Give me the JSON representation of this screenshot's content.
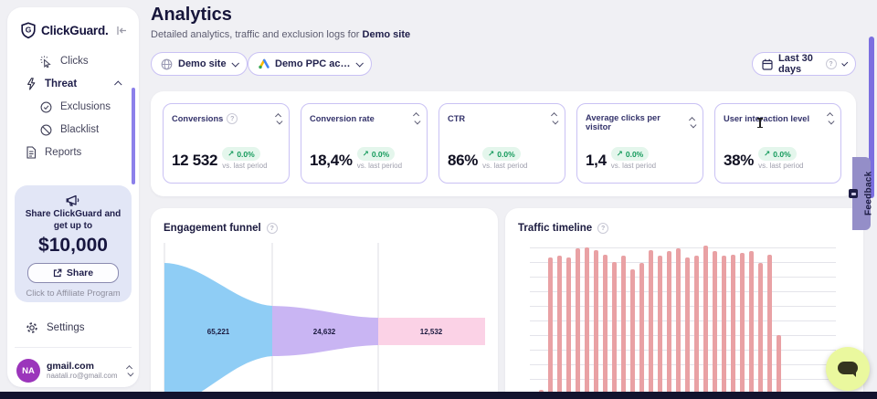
{
  "brand": {
    "name": "ClickGuard.",
    "logo_letter": "G"
  },
  "sidebar": {
    "nav": [
      {
        "label": "Clicks"
      },
      {
        "label": "Threat",
        "expanded": true
      },
      {
        "label": "Exclusions"
      },
      {
        "label": "Blacklist"
      },
      {
        "label": "Reports"
      }
    ],
    "promo": {
      "message": "Share ClickGuard and get up to",
      "amount": "$10,000",
      "share_label": "Share",
      "footer_link": "Click to Affiliate Program"
    },
    "settings_label": "Settings",
    "account": {
      "initials": "NA",
      "name": "gmail.com",
      "email": "naatali.ro@gmail.com"
    }
  },
  "header": {
    "title": "Analytics",
    "subtitle_prefix": "Detailed analytics, traffic and exclusion logs for ",
    "subtitle_site": "Demo site"
  },
  "filters": {
    "site_selector": "Demo site",
    "account_selector": "Demo PPC ac…",
    "date_selector": "Last 30 days"
  },
  "kpis": {
    "badge_text": "0.0%",
    "sub_text": "vs. last period",
    "cards": [
      {
        "label": "Conversions",
        "value": "12 532"
      },
      {
        "label": "Conversion rate",
        "value": "18,4%"
      },
      {
        "label": "CTR",
        "value": "86%"
      },
      {
        "label": "Average clicks per visitor",
        "value": "1,4"
      },
      {
        "label": "User interaction level",
        "value": "38%"
      }
    ]
  },
  "charts": {
    "funnel_title": "Engagement funnel",
    "timeline_title": "Traffic timeline"
  },
  "chart_data": [
    {
      "type": "funnel",
      "title": "Engagement funnel",
      "stages": [
        {
          "label": "65,221",
          "value": 65221,
          "color": "#8FCDF5"
        },
        {
          "label": "24,632",
          "value": 24632,
          "color": "#C9B5F3"
        },
        {
          "label": "12,532",
          "value": 12532,
          "color": "#FBD2E6"
        }
      ],
      "note": "funnel is clipped by bottom edge of viewport"
    },
    {
      "type": "bar",
      "title": "Traffic timeline",
      "bar_color": "#E9A1A4",
      "grid": "horizontal",
      "axis_labels_visible": false,
      "ylim": [
        0,
        100
      ],
      "values_pct_of_max": [
        1,
        92,
        93,
        92,
        98,
        99,
        97,
        94,
        89,
        93,
        84,
        88,
        97,
        93,
        96,
        98,
        92,
        93,
        100,
        96,
        93,
        94,
        95,
        96,
        88,
        94,
        39
      ]
    }
  ],
  "feedback_tab": "Feedback",
  "icons": {
    "help": "?",
    "trend": "↗"
  },
  "colors": {
    "accent_purple": "#7B6FE0",
    "border_purple": "#C9C1F4",
    "navy": "#17163B",
    "badge_green_text": "#149A5B",
    "badge_green_bg": "#E4F6EC",
    "bar_pink": "#E9A1A4",
    "funnel_blue": "#8FCDF5",
    "funnel_purple": "#C9B5F3",
    "funnel_pink": "#FBD2E6",
    "promo_bg": "#E2E6F6",
    "avatar_purple": "#9B35BB",
    "chat_bg": "#EAF89E"
  }
}
